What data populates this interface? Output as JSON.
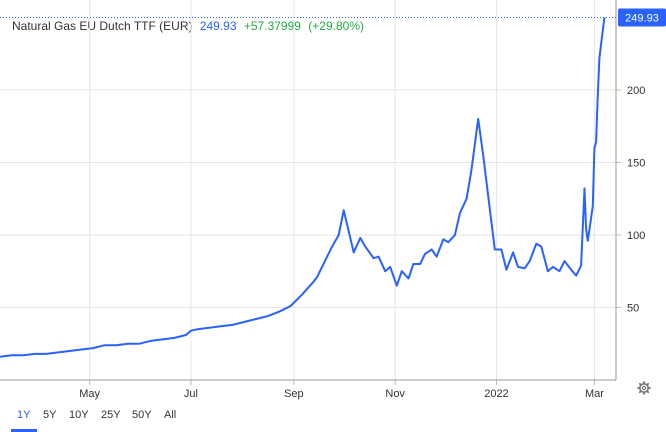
{
  "header": {
    "title": "Natural Gas EU Dutch TTF (EUR)",
    "price": "249.93",
    "change": "+57.37999",
    "change_pct": "(+29.80%)"
  },
  "last_price_label": "249.93",
  "colors": {
    "line": "#2962ff",
    "up": "#22ab47",
    "grid": "#e6e6e6",
    "badge": "#2962ff"
  },
  "range_buttons": [
    "1Y",
    "5Y",
    "10Y",
    "25Y",
    "50Y",
    "All"
  ],
  "active_range": "1Y",
  "icons": {
    "settings": "gear-icon"
  },
  "chart_data": {
    "type": "line",
    "title": "",
    "xlabel": "",
    "ylabel": "",
    "xlim": [
      "2021-03-08",
      "2022-03-14"
    ],
    "ylim": [
      0,
      262
    ],
    "yticks": [
      50,
      100,
      150,
      200
    ],
    "xticks": [
      {
        "date": "2021-05-01",
        "label": "May"
      },
      {
        "date": "2021-07-01",
        "label": "Jul"
      },
      {
        "date": "2021-09-01",
        "label": "Sep"
      },
      {
        "date": "2021-11-01",
        "label": "Nov"
      },
      {
        "date": "2022-01-01",
        "label": "2022"
      },
      {
        "date": "2022-03-01",
        "label": "Mar"
      }
    ],
    "grid": true,
    "series": [
      {
        "x": [
          "2021-03-08",
          "2021-03-15",
          "2021-03-22",
          "2021-03-29",
          "2021-04-05",
          "2021-04-12",
          "2021-04-19",
          "2021-04-26",
          "2021-05-03",
          "2021-05-10",
          "2021-05-17",
          "2021-05-24",
          "2021-05-31",
          "2021-06-07",
          "2021-06-14",
          "2021-06-21",
          "2021-06-28",
          "2021-07-01",
          "2021-07-05",
          "2021-07-12",
          "2021-07-19",
          "2021-07-26",
          "2021-08-02",
          "2021-08-09",
          "2021-08-16",
          "2021-08-23",
          "2021-08-30",
          "2021-09-06",
          "2021-09-13",
          "2021-09-15",
          "2021-09-21",
          "2021-09-24",
          "2021-09-28",
          "2021-10-01",
          "2021-10-05",
          "2021-10-07",
          "2021-10-11",
          "2021-10-14",
          "2021-10-19",
          "2021-10-22",
          "2021-10-26",
          "2021-10-29",
          "2021-11-02",
          "2021-11-05",
          "2021-11-09",
          "2021-11-12",
          "2021-11-16",
          "2021-11-19",
          "2021-11-23",
          "2021-11-26",
          "2021-11-30",
          "2021-12-03",
          "2021-12-07",
          "2021-12-10",
          "2021-12-14",
          "2021-12-17",
          "2021-12-21",
          "2021-12-24",
          "2021-12-28",
          "2021-12-31",
          "2022-01-04",
          "2022-01-07",
          "2022-01-11",
          "2022-01-14",
          "2022-01-18",
          "2022-01-21",
          "2022-01-25",
          "2022-01-28",
          "2022-02-01",
          "2022-02-04",
          "2022-02-08",
          "2022-02-11",
          "2022-02-15",
          "2022-02-18",
          "2022-02-21",
          "2022-02-23",
          "2022-02-24",
          "2022-02-25",
          "2022-02-28",
          "2022-03-01",
          "2022-03-02",
          "2022-03-03",
          "2022-03-04",
          "2022-03-07"
        ],
        "y": [
          16,
          17,
          17,
          18,
          18,
          19,
          20,
          21,
          22,
          24,
          24,
          25,
          25,
          27,
          28,
          29,
          31,
          34,
          35,
          36,
          37,
          38,
          40,
          42,
          44,
          47,
          51,
          59,
          68,
          71,
          85,
          92,
          100,
          117,
          98,
          88,
          98,
          92,
          84,
          85,
          75,
          78,
          65,
          75,
          70,
          80,
          80,
          87,
          90,
          85,
          97,
          95,
          100,
          115,
          125,
          145,
          180,
          155,
          118,
          90,
          90,
          76,
          88,
          78,
          77,
          82,
          94,
          92,
          75,
          78,
          75,
          82,
          76,
          72,
          79,
          132,
          104,
          96,
          120,
          160,
          164,
          195,
          222,
          249.93
        ]
      }
    ]
  }
}
